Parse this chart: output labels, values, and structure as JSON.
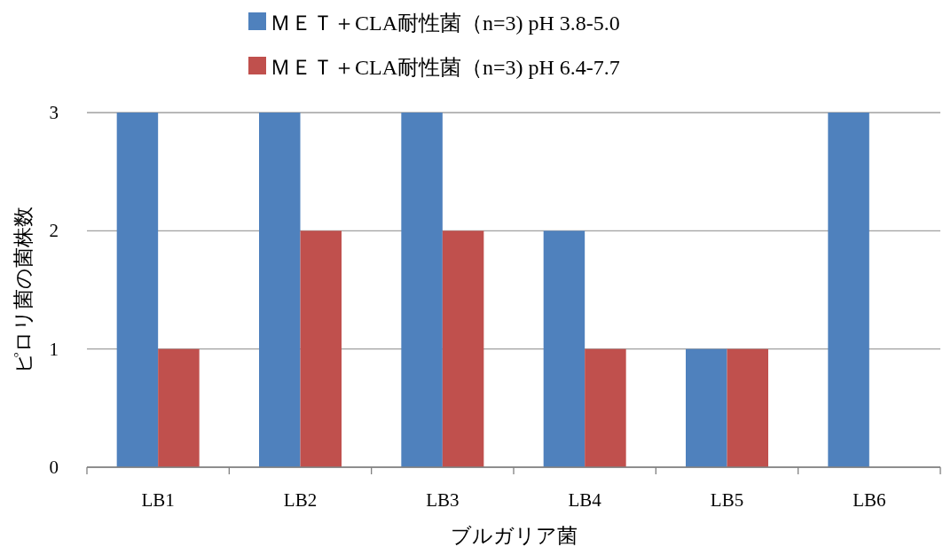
{
  "chart_data": {
    "type": "bar",
    "categories": [
      "LB1",
      "LB2",
      "LB3",
      "LB4",
      "LB5",
      "LB6"
    ],
    "series": [
      {
        "name": "ＭＥＴ＋CLA耐性菌（n=3) pH 3.8-5.0",
        "color": "#4f81bd",
        "values": [
          3,
          3,
          3,
          2,
          1,
          3
        ]
      },
      {
        "name": "ＭＥＴ＋CLA耐性菌（n=3) pH 6.4-7.7",
        "color": "#c0504d",
        "values": [
          1,
          2,
          2,
          1,
          1,
          0
        ]
      }
    ],
    "xlabel": "ブルガリア菌",
    "ylabel": "ピロリ菌の菌株数",
    "ylim": [
      0,
      3
    ],
    "yticks": [
      0,
      1,
      2,
      3
    ],
    "grid": "y",
    "legend": "top"
  }
}
